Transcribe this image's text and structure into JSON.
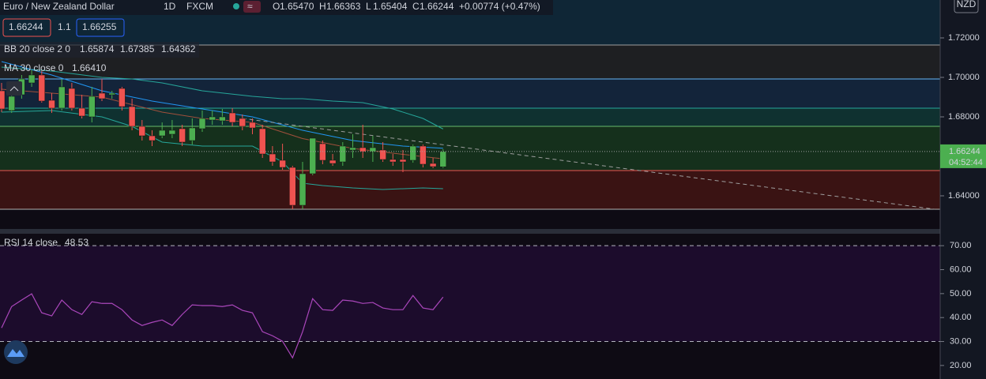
{
  "header": {
    "title": "Euro / New Zealand Dollar",
    "interval": "1D",
    "exchange": "FXCM",
    "ohlc": [
      {
        "label": "O",
        "value": "1.65470"
      },
      {
        "label": "H",
        "value": "1.66363"
      },
      {
        "label": "L",
        "value": "1.65404"
      },
      {
        "label": "C",
        "value": "1.66244"
      }
    ],
    "change": "+0.00774 (+0.47%)",
    "sell": "1.66244",
    "spread": "1.1",
    "buy": "1.66255",
    "bb": {
      "label": "BB 20 close 2 0",
      "values": [
        "1.65874",
        "1.67385",
        "1.64362"
      ]
    },
    "ma": {
      "label": "MA 30 close 0",
      "value": "1.66410"
    },
    "rsi": {
      "label": "RSI 14 close",
      "value": "48.53"
    },
    "currency": "NZD",
    "price_tag": "1.66244",
    "countdown": "04:52:44"
  },
  "chart_data": [
    {
      "type": "candlestick",
      "open": [
        1.6932,
        1.6832,
        1.6912,
        1.6972,
        1.7012,
        1.6884,
        1.6844,
        1.6944,
        1.6844,
        1.68,
        1.692,
        1.6912,
        1.6944,
        1.6852,
        1.6752,
        1.6704,
        1.6704,
        1.6712,
        1.674,
        1.668,
        1.674,
        1.6784,
        1.678,
        1.682,
        1.6792,
        1.6772,
        1.674,
        1.6612,
        1.658,
        1.6544,
        1.6352,
        1.6512,
        1.6664,
        1.658,
        1.6572,
        1.6632,
        1.6644,
        1.6624,
        1.6632,
        1.6584,
        1.6584,
        1.658,
        1.6652,
        1.6564,
        1.6547
      ],
      "high": [
        1.6972,
        1.6952,
        1.7012,
        1.704,
        1.7032,
        1.692,
        1.6992,
        1.6972,
        1.6912,
        1.6952,
        1.6992,
        1.6932,
        1.6952,
        1.6892,
        1.6784,
        1.6732,
        1.6772,
        1.6784,
        1.676,
        1.6792,
        1.6832,
        1.6832,
        1.684,
        1.6844,
        1.6812,
        1.6792,
        1.676,
        1.6652,
        1.6664,
        1.6552,
        1.6572,
        1.6692,
        1.668,
        1.6612,
        1.6672,
        1.6712,
        1.676,
        1.6704,
        1.6672,
        1.6612,
        1.6632,
        1.666,
        1.666,
        1.6592,
        1.66363
      ],
      "low": [
        1.6824,
        1.682,
        1.6892,
        1.6952,
        1.6872,
        1.682,
        1.6832,
        1.6832,
        1.6792,
        1.6772,
        1.688,
        1.6892,
        1.6832,
        1.6732,
        1.668,
        1.6652,
        1.6692,
        1.6692,
        1.6652,
        1.666,
        1.6724,
        1.676,
        1.676,
        1.6752,
        1.6732,
        1.6712,
        1.6592,
        1.6552,
        1.6532,
        1.6332,
        1.6332,
        1.6504,
        1.656,
        1.6552,
        1.6552,
        1.6592,
        1.6592,
        1.6572,
        1.6572,
        1.6552,
        1.652,
        1.6568,
        1.6544,
        1.654,
        1.65404
      ],
      "close": [
        1.684,
        1.6904,
        1.6992,
        1.7012,
        1.688,
        1.6844,
        1.6952,
        1.6844,
        1.6804,
        1.6904,
        1.6892,
        1.692,
        1.6852,
        1.6752,
        1.6704,
        1.668,
        1.6732,
        1.6732,
        1.6672,
        1.6744,
        1.6792,
        1.68,
        1.68,
        1.6772,
        1.6752,
        1.6744,
        1.6612,
        1.6572,
        1.6544,
        1.6352,
        1.6512,
        1.6692,
        1.658,
        1.6564,
        1.6652,
        1.6644,
        1.6624,
        1.6644,
        1.6584,
        1.6572,
        1.6572,
        1.6652,
        1.656,
        1.6548,
        1.66244
      ],
      "up_color": "#4caf50",
      "down_color": "#ef5350",
      "ylim": [
        1.6232,
        1.7392
      ],
      "yticks": [
        {
          "value": 1.72,
          "label": "1.72000"
        },
        {
          "value": 1.7,
          "label": "1.70000"
        },
        {
          "value": 1.68,
          "label": "1.68000"
        },
        {
          "value": 1.64,
          "label": "1.64000"
        }
      ],
      "top_fill": "#0f2636",
      "levels": [
        {
          "value": 1.7164,
          "color": "#9e9e9e",
          "fill": "#1e1f22"
        },
        {
          "value": 1.6992,
          "color": "#64b5f6",
          "fill": "#13243a"
        },
        {
          "value": 1.6844,
          "color": "#26a69a",
          "fill": "#0f3130"
        },
        {
          "value": 1.6752,
          "color": "#66bb6a",
          "fill": "#15301c"
        },
        {
          "value": 1.6528,
          "color": "#ef5350",
          "fill": "#3a1313"
        },
        {
          "value": 1.6332,
          "color": "#b0b0b0"
        }
      ],
      "overlays": [
        {
          "color": "#26a69a",
          "x": [
            0,
            5,
            10,
            13,
            16,
            20,
            25,
            28,
            30,
            33,
            36,
            39,
            42,
            44
          ],
          "values": [
            1.7052,
            1.7032,
            1.7,
            1.6992,
            1.6972,
            1.6932,
            1.6904,
            1.6892,
            1.6892,
            1.688,
            1.6872,
            1.684,
            1.6792,
            1.67385
          ]
        },
        {
          "color": "#26a69a",
          "x": [
            0,
            5,
            10,
            13,
            16,
            20,
            25,
            28,
            30,
            32,
            35,
            38,
            42,
            44
          ],
          "values": [
            1.6824,
            1.6832,
            1.68,
            1.6752,
            1.6672,
            1.6652,
            1.6652,
            1.6572,
            1.6464,
            1.6452,
            1.644,
            1.6432,
            1.644,
            1.64362
          ]
        },
        {
          "color": "#a1503c",
          "x": [
            0,
            10,
            16,
            20,
            25,
            30,
            35,
            40,
            44
          ],
          "values": [
            1.694,
            1.69,
            1.6824,
            1.6792,
            1.6772,
            1.669,
            1.664,
            1.661,
            1.65874
          ]
        },
        {
          "color": "#2196f3",
          "x": [
            0,
            5,
            10,
            15,
            20,
            25,
            30,
            35,
            40,
            44
          ],
          "values": [
            1.708,
            1.7012,
            1.6932,
            1.688,
            1.684,
            1.68,
            1.6732,
            1.668,
            1.6652,
            1.6641
          ]
        },
        {
          "color": "#9e9e9e",
          "dash": true,
          "x": [
            24,
            93
          ],
          "values": [
            1.6792,
            1.6332
          ]
        }
      ]
    },
    {
      "type": "line",
      "values": [
        35.7,
        44.6,
        47.3,
        49.9,
        42.0,
        40.7,
        47.3,
        43.3,
        41.3,
        46.6,
        45.9,
        45.9,
        43.3,
        39.0,
        36.7,
        38.0,
        39.0,
        36.7,
        41.3,
        45.3,
        45.0,
        45.0,
        44.6,
        45.3,
        43.0,
        42.0,
        34.1,
        32.4,
        30.1,
        23.2,
        34.1,
        47.9,
        43.3,
        43.0,
        47.3,
        46.9,
        45.9,
        46.3,
        44.0,
        43.3,
        43.3,
        49.2,
        44.0,
        43.3,
        48.53
      ],
      "color": "#ab47bc",
      "ylim": [
        16,
        75
      ],
      "yticks": [
        {
          "value": 70,
          "label": "70.00"
        },
        {
          "value": 60,
          "label": "60.00"
        },
        {
          "value": 50,
          "label": "50.00"
        },
        {
          "value": 40,
          "label": "40.00"
        },
        {
          "value": 30,
          "label": "30.00"
        },
        {
          "value": 20,
          "label": "20.00"
        }
      ],
      "band": [
        30,
        70
      ],
      "band_color": "#1c0c2c"
    }
  ]
}
